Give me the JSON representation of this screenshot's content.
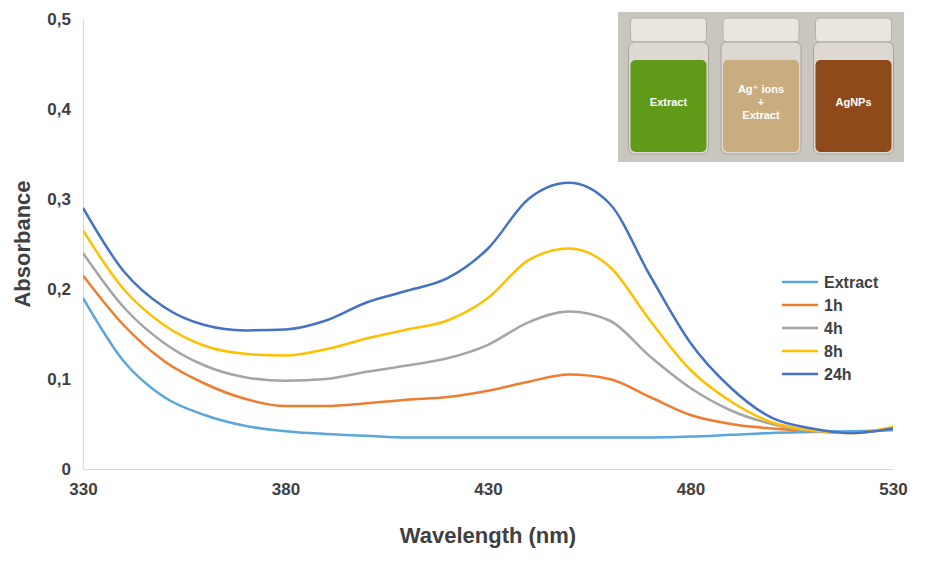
{
  "chart_data": {
    "type": "line",
    "x_label": "Wavelength (nm)",
    "y_label": "Absorbance",
    "x": [
      330,
      340,
      350,
      360,
      370,
      380,
      390,
      400,
      410,
      420,
      430,
      440,
      450,
      460,
      470,
      480,
      490,
      500,
      510,
      520,
      530
    ],
    "xlim": [
      330,
      530
    ],
    "xticks": [
      330,
      380,
      430,
      480,
      530
    ],
    "ylim": [
      0,
      0.5
    ],
    "yticks": [
      0,
      {
        "value": 0.1,
        "label": "0,1"
      },
      {
        "value": 0.2,
        "label": "0,2"
      },
      {
        "value": 0.3,
        "label": "0,3"
      },
      {
        "value": 0.4,
        "label": "0,4"
      },
      {
        "value": 0.5,
        "label": "0,5"
      }
    ],
    "grid": false,
    "legend": "right",
    "series": [
      {
        "name": "Extract",
        "color": "#5aa7dc",
        "values": [
          0.19,
          0.12,
          0.08,
          0.06,
          0.048,
          0.042,
          0.039,
          0.037,
          0.035,
          0.035,
          0.035,
          0.035,
          0.035,
          0.035,
          0.035,
          0.036,
          0.038,
          0.04,
          0.041,
          0.042,
          0.043
        ]
      },
      {
        "name": "1h",
        "color": "#ed7d31",
        "values": [
          0.215,
          0.16,
          0.12,
          0.095,
          0.078,
          0.07,
          0.07,
          0.073,
          0.077,
          0.08,
          0.087,
          0.097,
          0.105,
          0.1,
          0.08,
          0.06,
          0.05,
          0.045,
          0.042,
          0.04,
          0.045
        ]
      },
      {
        "name": "4h",
        "color": "#a5a5a5",
        "values": [
          0.24,
          0.18,
          0.14,
          0.115,
          0.102,
          0.098,
          0.1,
          0.108,
          0.115,
          0.123,
          0.138,
          0.163,
          0.175,
          0.165,
          0.125,
          0.09,
          0.065,
          0.05,
          0.042,
          0.04,
          0.045
        ]
      },
      {
        "name": "8h",
        "color": "#ffc000",
        "values": [
          0.265,
          0.2,
          0.16,
          0.137,
          0.128,
          0.126,
          0.133,
          0.145,
          0.155,
          0.165,
          0.19,
          0.232,
          0.245,
          0.225,
          0.165,
          0.11,
          0.075,
          0.052,
          0.043,
          0.04,
          0.047
        ]
      },
      {
        "name": "24h",
        "color": "#4472c4",
        "values": [
          0.29,
          0.22,
          0.18,
          0.16,
          0.154,
          0.155,
          0.165,
          0.185,
          0.198,
          0.212,
          0.245,
          0.3,
          0.318,
          0.295,
          0.215,
          0.14,
          0.09,
          0.057,
          0.045,
          0.04,
          0.045
        ]
      }
    ],
    "annotations": [
      [
        "Extract"
      ],
      [
        "Ag⁺ ions",
        "+",
        "Extract"
      ],
      [
        "AgNPs"
      ]
    ]
  }
}
